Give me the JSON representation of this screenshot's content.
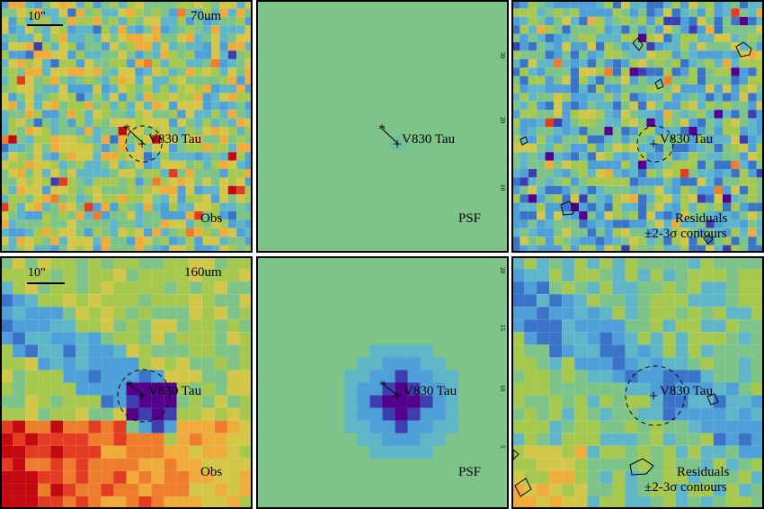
{
  "target_name": "V830 Tau",
  "scalebar_label": "10\"",
  "palette": [
    "#54008c",
    "#3d3fb0",
    "#3a74c9",
    "#4fa0d8",
    "#5fb6c8",
    "#7ec388",
    "#a6c84e",
    "#d2c748",
    "#efac3a",
    "#ef7d2e",
    "#e33c23",
    "#c40a10"
  ],
  "rows": [
    {
      "band_label": "70um",
      "panels": [
        {
          "kind": "obs",
          "caption": "Obs"
        },
        {
          "kind": "psf",
          "caption": "PSF",
          "tick_labels": [
            "30",
            "20",
            "10"
          ]
        },
        {
          "kind": "residuals",
          "caption_line1": "Residuals",
          "caption_line2": "±2-3σ contours"
        }
      ]
    },
    {
      "band_label": "160um",
      "panels": [
        {
          "kind": "obs",
          "caption": "Obs"
        },
        {
          "kind": "psf",
          "caption": "PSF",
          "tick_labels": [
            "20",
            "15",
            "10",
            "5"
          ]
        },
        {
          "kind": "residuals",
          "caption_line1": "Residuals",
          "caption_line2": "±2-3σ contours"
        }
      ]
    }
  ]
}
